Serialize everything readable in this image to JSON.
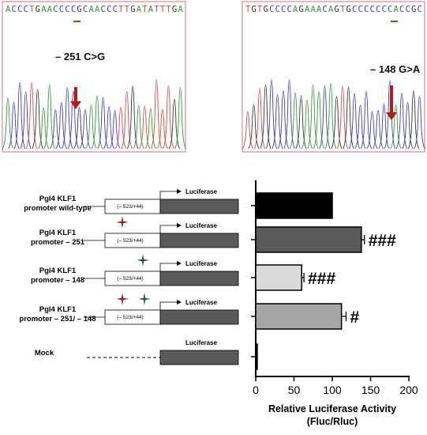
{
  "chromatograms": [
    {
      "sequence": "ACCCTGAACCCCGCAACCCTTGATATTTGA",
      "mutation_label": "– 251 C>G"
    },
    {
      "sequence": "TGTGCCCCAGAAACAGTGCCCCCCCACCGC",
      "mutation_label": "– 148 G>A"
    }
  ],
  "constructs": [
    {
      "name_line1": "Pgl4 KLF1",
      "name_line2": "promoter wild-type",
      "promoter_range": "(– 523/+44)",
      "reporter_label": "Luciferase",
      "mutation_markers": []
    },
    {
      "name_line1": "Pgl4 KLF1",
      "name_line2": "promoter – 251",
      "promoter_range": "(– 523/+44)",
      "reporter_label": "Luciferase",
      "mutation_markers": [
        "-251"
      ]
    },
    {
      "name_line1": "Pgl4 KLF1",
      "name_line2": "promoter – 148",
      "promoter_range": "(– 523/+44)",
      "reporter_label": "Luciferase",
      "mutation_markers": [
        "-148"
      ]
    },
    {
      "name_line1": "Pgl4 KLF1",
      "name_line2": "promoter – 251/ – 148",
      "promoter_range": "(– 523/+44)",
      "reporter_label": "Luciferase",
      "mutation_markers": [
        "-251",
        "-148"
      ]
    },
    {
      "name_line1": "Mock",
      "name_line2": "",
      "promoter_range": "",
      "reporter_label": "Luciferase",
      "mutation_markers": []
    }
  ],
  "colors": {
    "A": "#2ca02c",
    "C": "#3a3acd",
    "G": "#333333",
    "T": "#e8433c",
    "frame": "#e1a2a8",
    "arrow": "#b31b1b",
    "underline": "#b34a1e",
    "marker_251": "#8e2a2a",
    "marker_148": "#2f5a3a"
  },
  "chart_data": {
    "type": "bar",
    "orientation": "horizontal",
    "categories": [
      "Pgl4 KLF1 promoter wild-type",
      "Pgl4 KLF1 promoter – 251",
      "Pgl4 KLF1 promoter – 148",
      "Pgl4 KLF1 promoter – 251/ – 148",
      "Mock"
    ],
    "values": [
      100,
      138,
      60,
      112,
      2
    ],
    "errors": [
      0,
      4,
      3,
      6,
      0
    ],
    "significance": [
      "",
      "###",
      "###",
      "#",
      ""
    ],
    "bar_colors": [
      "#000000",
      "#595959",
      "#d9d9d9",
      "#a6a6a6",
      "#000000"
    ],
    "xlabel_line1": "Relative Luciferase Activity",
    "xlabel_line2": "(Fluc/Rluc)",
    "xlim": [
      0,
      200
    ],
    "xticks": [
      0,
      50,
      100,
      150,
      200
    ],
    "grid": false
  }
}
